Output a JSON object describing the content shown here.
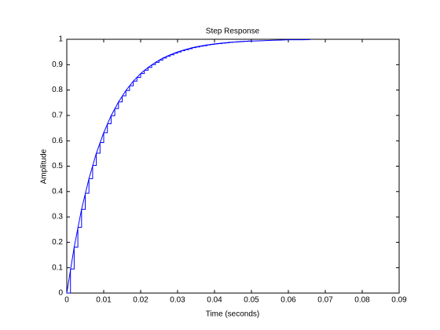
{
  "chart_data": {
    "type": "step",
    "title": "Step Response",
    "xlabel": "Time (seconds)",
    "ylabel": "Amplitude",
    "xlim": [
      0,
      0.09
    ],
    "ylim": [
      0,
      1
    ],
    "xticks": [
      0,
      0.01,
      0.02,
      0.03,
      0.04,
      0.05,
      0.06,
      0.07,
      0.08,
      0.09
    ],
    "yticks": [
      0,
      0.1,
      0.2,
      0.3,
      0.4,
      0.5,
      0.6,
      0.7,
      0.8,
      0.9,
      1
    ],
    "series": [
      {
        "color": "#0000ff",
        "style": "line",
        "x": [
          0,
          0.002,
          0.004,
          0.006,
          0.008,
          0.01,
          0.012,
          0.014,
          0.016,
          0.018,
          0.02,
          0.022,
          0.024,
          0.026,
          0.028,
          0.03,
          0.032,
          0.034,
          0.036,
          0.038,
          0.04,
          0.042,
          0.044,
          0.046,
          0.048,
          0.05,
          0.052,
          0.054,
          0.056,
          0.058,
          0.06,
          0.062,
          0.064,
          0.066
        ],
        "values": [
          0,
          0.181,
          0.33,
          0.451,
          0.551,
          0.632,
          0.699,
          0.753,
          0.798,
          0.835,
          0.865,
          0.889,
          0.909,
          0.926,
          0.939,
          0.95,
          0.959,
          0.967,
          0.973,
          0.978,
          0.982,
          0.985,
          0.988,
          0.99,
          0.992,
          0.993,
          0.994,
          0.995,
          0.996,
          0.997,
          0.998,
          0.998,
          0.998,
          0.999
        ]
      },
      {
        "color": "#0000ff",
        "style": "stairs",
        "x": [
          0,
          0.001,
          0.002,
          0.003,
          0.004,
          0.005,
          0.006,
          0.007,
          0.008,
          0.009,
          0.01,
          0.011,
          0.012,
          0.013,
          0.014,
          0.015,
          0.016,
          0.017,
          0.018,
          0.019,
          0.02,
          0.021,
          0.022,
          0.023,
          0.024,
          0.025,
          0.026,
          0.027,
          0.028,
          0.029,
          0.03,
          0.031,
          0.032,
          0.033,
          0.034,
          0.035,
          0.036,
          0.037,
          0.038,
          0.039,
          0.04,
          0.041,
          0.042,
          0.043,
          0.044,
          0.045,
          0.046,
          0.047,
          0.048,
          0.049,
          0.05
        ],
        "values": [
          0,
          0.095,
          0.181,
          0.259,
          0.33,
          0.393,
          0.451,
          0.503,
          0.551,
          0.593,
          0.632,
          0.667,
          0.699,
          0.727,
          0.753,
          0.777,
          0.798,
          0.817,
          0.835,
          0.85,
          0.865,
          0.878,
          0.889,
          0.9,
          0.909,
          0.918,
          0.926,
          0.933,
          0.939,
          0.945,
          0.95,
          0.955,
          0.959,
          0.963,
          0.967,
          0.97,
          0.973,
          0.975,
          0.978,
          0.98,
          0.982,
          0.983,
          0.985,
          0.986,
          0.988,
          0.989,
          0.99,
          0.991,
          0.992,
          0.993,
          0.993
        ]
      }
    ]
  }
}
